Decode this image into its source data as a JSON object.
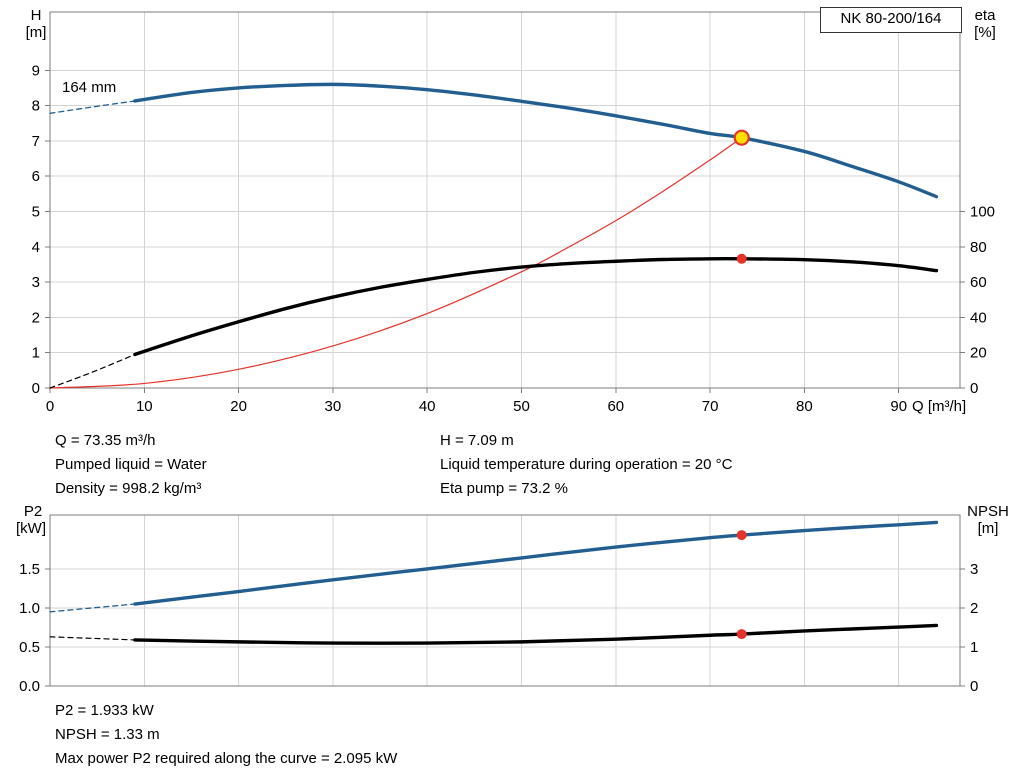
{
  "top_chart": {
    "model_label": "NK 80-200/164",
    "impeller_label": "164 mm",
    "y_left_title": "H",
    "y_left_unit": "[m]",
    "y_right_title": "eta",
    "y_right_unit": "[%]",
    "x_title": "Q [m³/h]"
  },
  "bottom_chart": {
    "y_left_title": "P2",
    "y_left_unit": "[kW]",
    "y_right_title": "NPSH",
    "y_right_unit": "[m]"
  },
  "info": {
    "q": "Q = 73.35 m³/h",
    "pumped_liquid": "Pumped liquid = Water",
    "density": "Density = 998.2 kg/m³",
    "h": "H = 7.09 m",
    "liquid_temp": "Liquid temperature during operation = 20 °C",
    "eta_pump": "Eta pump = 73.2 %"
  },
  "footer": {
    "p2": "P2 = 1.933 kW",
    "npsh": "NPSH = 1.33 m",
    "max_power": "Max power P2 required along the curve = 2.095 kW"
  },
  "chart_data": [
    {
      "id": "head_chart",
      "type": "line",
      "title": "NK 80-200/164 head and efficiency curves",
      "x_axis": {
        "label": "Q [m³/h]",
        "min": 0,
        "max": 96.5,
        "ticks": [
          0,
          10,
          20,
          30,
          40,
          50,
          60,
          70,
          80,
          90
        ],
        "tick_labels": [
          "0",
          "10",
          "20",
          "30",
          "40",
          "50",
          "60",
          "70",
          "80",
          "90"
        ],
        "show_ticks": true
      },
      "y_left": {
        "label": "H [m]",
        "min": 0,
        "max": 10.65,
        "ticks": [
          0,
          1,
          2,
          3,
          4,
          5,
          6,
          7,
          8,
          9
        ],
        "tick_labels": [
          "0",
          "1",
          "2",
          "3",
          "4",
          "5",
          "6",
          "7",
          "8",
          "9"
        ]
      },
      "y_right": {
        "label": "eta [%]",
        "min": 0,
        "max": 213,
        "ticks": [
          0,
          20,
          40,
          60,
          80,
          100
        ],
        "tick_labels": [
          "0",
          "20",
          "40",
          "60",
          "80",
          "100"
        ]
      },
      "series": [
        {
          "name": "head-curve-dashed",
          "axis": "left",
          "color": "#235e91",
          "width": 1.3,
          "dash": "5 4",
          "points": [
            [
              0,
              7.78
            ],
            [
              4.5,
              7.96
            ],
            [
              9,
              8.13
            ]
          ]
        },
        {
          "name": "system-curve",
          "axis": "left",
          "color": "#e63229",
          "width": 1.2,
          "points": [
            [
              0,
              0
            ],
            [
              10,
              0.13
            ],
            [
              20,
              0.53
            ],
            [
              30,
              1.19
            ],
            [
              40,
              2.11
            ],
            [
              50,
              3.29
            ],
            [
              55,
              3.99
            ],
            [
              60,
              4.74
            ],
            [
              65,
              5.57
            ],
            [
              70,
              6.46
            ],
            [
              73.35,
              7.09
            ]
          ]
        },
        {
          "name": "eta-curve-dashed",
          "axis": "right",
          "color": "#000000",
          "width": 1.2,
          "dash": "5 4",
          "points": [
            [
              0,
              0
            ],
            [
              4.5,
              9
            ],
            [
              9,
              19
            ]
          ]
        },
        {
          "name": "eta-curve",
          "axis": "right",
          "color": "#000000",
          "width": 3.4,
          "points": [
            [
              9,
              19
            ],
            [
              15,
              29.5
            ],
            [
              20,
              37.5
            ],
            [
              25,
              45
            ],
            [
              30,
              51.5
            ],
            [
              35,
              57
            ],
            [
              40,
              61.5
            ],
            [
              45,
              65.5
            ],
            [
              50,
              68.5
            ],
            [
              55,
              70.5
            ],
            [
              60,
              71.8
            ],
            [
              65,
              72.8
            ],
            [
              70,
              73.2
            ],
            [
              73.35,
              73.2
            ],
            [
              80,
              72.7
            ],
            [
              85,
              71.5
            ],
            [
              90,
              69.3
            ],
            [
              94,
              66.5
            ]
          ]
        },
        {
          "name": "head-curve",
          "axis": "left",
          "color": "#235e91",
          "width": 3.4,
          "points": [
            [
              9,
              8.13
            ],
            [
              15,
              8.37
            ],
            [
              20,
              8.5
            ],
            [
              25,
              8.57
            ],
            [
              30,
              8.6
            ],
            [
              35,
              8.55
            ],
            [
              40,
              8.45
            ],
            [
              45,
              8.3
            ],
            [
              50,
              8.12
            ],
            [
              55,
              7.93
            ],
            [
              60,
              7.71
            ],
            [
              65,
              7.47
            ],
            [
              70,
              7.21
            ],
            [
              73.35,
              7.09
            ],
            [
              80,
              6.7
            ],
            [
              85,
              6.28
            ],
            [
              90,
              5.84
            ],
            [
              94,
              5.42
            ]
          ]
        }
      ],
      "markers": [
        {
          "name": "duty-point-head",
          "x": 73.35,
          "y": 7.09,
          "axis": "left",
          "r": 7,
          "fill": "#ffdf00",
          "stroke": "#e63229",
          "stroke_width": 2.2
        },
        {
          "name": "duty-point-eta",
          "x": 73.35,
          "y": 73.2,
          "axis": "right",
          "r": 5,
          "fill": "#e63229"
        }
      ]
    },
    {
      "id": "power_chart",
      "type": "line",
      "title": "P2 and NPSH curves",
      "x_axis": {
        "label": "Q [m³/h]",
        "min": 0,
        "max": 96.5,
        "ticks": [
          10,
          20,
          30,
          40,
          50,
          60,
          70,
          80,
          90
        ],
        "tick_labels": [],
        "show_ticks": false
      },
      "y_left": {
        "label": "P2 [kW]",
        "min": 0,
        "max": 2.19,
        "ticks": [
          0,
          0.5,
          1,
          1.5
        ],
        "tick_labels": [
          "0.0",
          "0.5",
          "1.0",
          "1.5"
        ]
      },
      "y_right": {
        "label": "NPSH [m]",
        "min": 0,
        "max": 4.38,
        "ticks": [
          0,
          1,
          2,
          3
        ],
        "tick_labels": [
          "0",
          "1",
          "2",
          "3"
        ]
      },
      "series": [
        {
          "name": "p2-curve-dashed",
          "axis": "left",
          "color": "#235e91",
          "width": 1.3,
          "dash": "5 4",
          "points": [
            [
              0,
              0.95
            ],
            [
              4.5,
              1.0
            ],
            [
              9,
              1.05
            ]
          ]
        },
        {
          "name": "npsh-curve-dashed",
          "axis": "right",
          "color": "#000000",
          "width": 1.2,
          "dash": "5 4",
          "points": [
            [
              0,
              1.26
            ],
            [
              4.5,
              1.22
            ],
            [
              9,
              1.18
            ]
          ]
        },
        {
          "name": "npsh-curve",
          "axis": "right",
          "color": "#000000",
          "width": 3.4,
          "points": [
            [
              9,
              1.18
            ],
            [
              20,
              1.13
            ],
            [
              30,
              1.1
            ],
            [
              40,
              1.1
            ],
            [
              50,
              1.13
            ],
            [
              60,
              1.2
            ],
            [
              70,
              1.3
            ],
            [
              73.35,
              1.33
            ],
            [
              80,
              1.41
            ],
            [
              85,
              1.46
            ],
            [
              90,
              1.51
            ],
            [
              94,
              1.55
            ]
          ]
        },
        {
          "name": "p2-curve",
          "axis": "left",
          "color": "#235e91",
          "width": 3.4,
          "points": [
            [
              9,
              1.05
            ],
            [
              20,
              1.21
            ],
            [
              30,
              1.36
            ],
            [
              40,
              1.5
            ],
            [
              50,
              1.64
            ],
            [
              60,
              1.78
            ],
            [
              70,
              1.9
            ],
            [
              73.35,
              1.933
            ],
            [
              80,
              1.99
            ],
            [
              85,
              2.03
            ],
            [
              90,
              2.065
            ],
            [
              94,
              2.095
            ]
          ]
        }
      ],
      "markers": [
        {
          "name": "duty-point-p2",
          "x": 73.35,
          "y": 1.933,
          "axis": "left",
          "r": 5,
          "fill": "#e63229"
        },
        {
          "name": "duty-point-npsh",
          "x": 73.35,
          "y": 1.33,
          "axis": "right",
          "r": 5,
          "fill": "#e63229"
        }
      ]
    }
  ]
}
